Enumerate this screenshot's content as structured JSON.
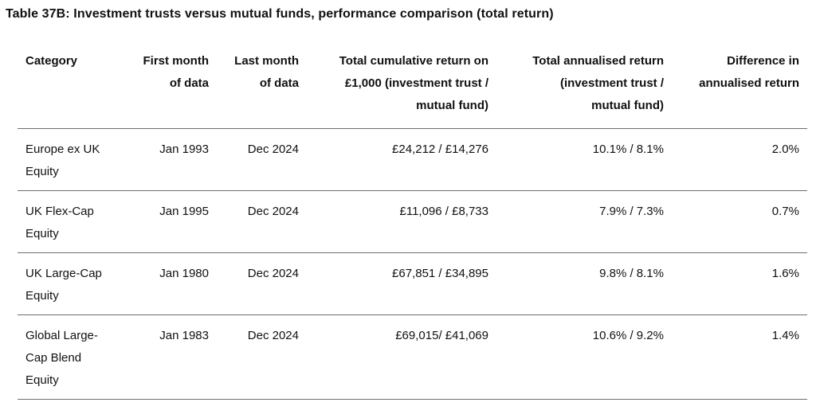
{
  "title": "Table 37B: Investment trusts versus mutual funds, performance comparison (total return)",
  "table": {
    "columns": [
      {
        "label": "Category"
      },
      {
        "label": "First month of data"
      },
      {
        "label": "Last month of data"
      },
      {
        "label": "Total cumulative return on £1,000 (investment trust / mutual fund)"
      },
      {
        "label": "Total annualised return (investment trust / mutual fund)"
      },
      {
        "label": "Difference in annualised return"
      }
    ],
    "rows": [
      [
        "Europe ex UK Equity",
        "Jan 1993",
        "Dec 2024",
        "£24,212 / £14,276",
        "10.1% / 8.1%",
        "2.0%"
      ],
      [
        "UK Flex-Cap Equity",
        "Jan 1995",
        "Dec 2024",
        "£11,096 / £8,733",
        "7.9% / 7.3%",
        "0.7%"
      ],
      [
        "UK Large-Cap Equity",
        "Jan 1980",
        "Dec 2024",
        "£67,851 / £34,895",
        "9.8% / 8.1%",
        "1.6%"
      ],
      [
        "Global Large-Cap Blend Equity",
        "Jan 1983",
        "Dec 2024",
        "£69,015/ £41,069",
        "10.6% / 9.2%",
        "1.4%"
      ]
    ]
  },
  "colors": {
    "text": "#0f1111",
    "rule": "#6b6e71",
    "background": "#ffffff"
  }
}
